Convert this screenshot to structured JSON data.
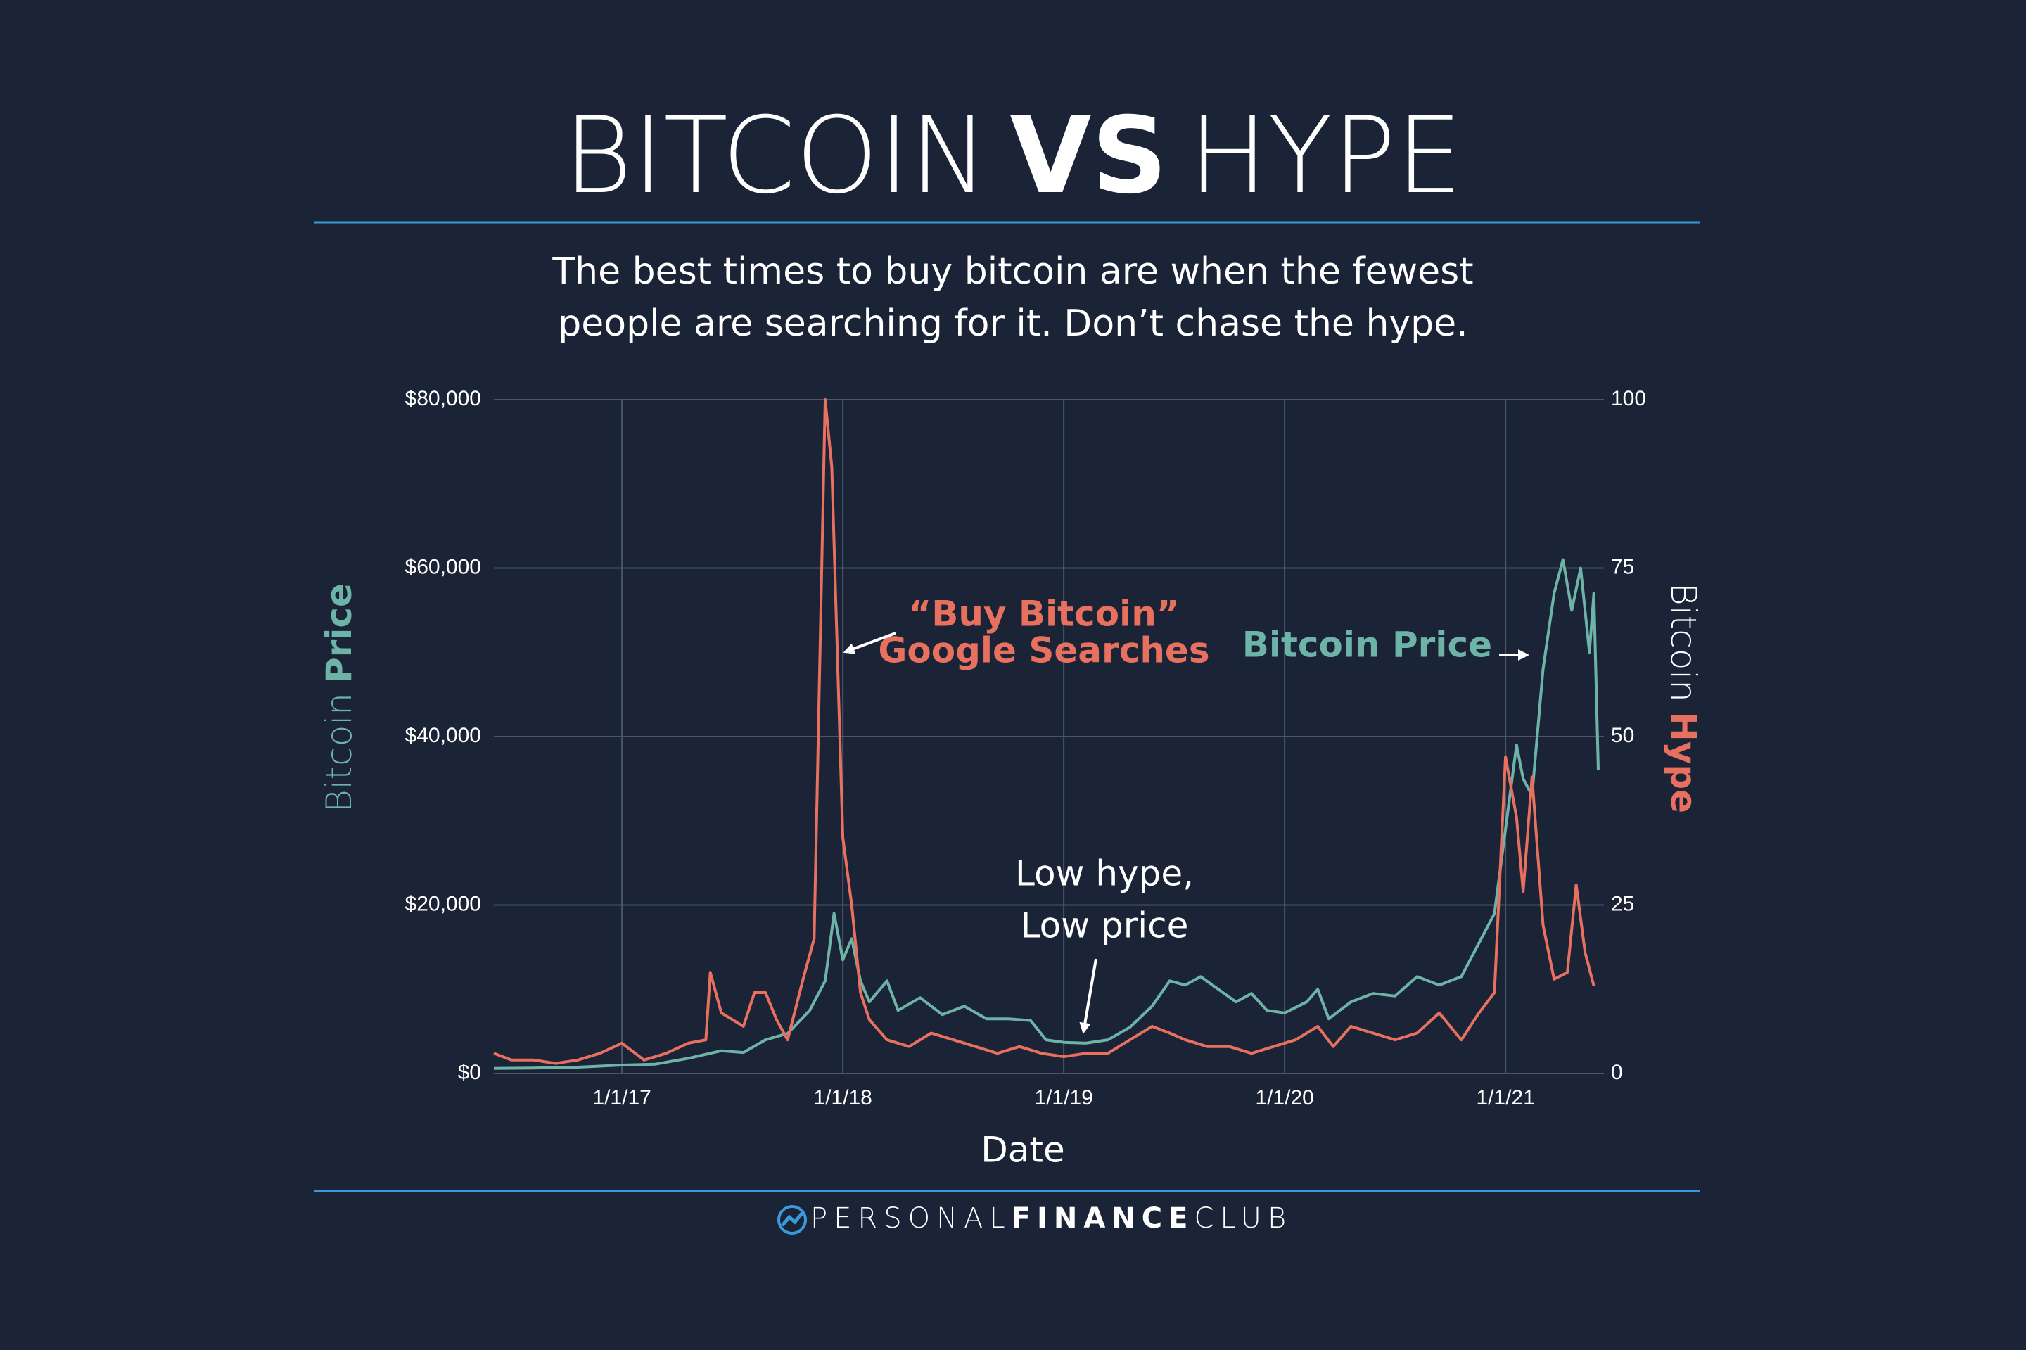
{
  "chart_data": {
    "type": "line",
    "title": [
      "BITCOIN",
      "VS",
      "HYPE"
    ],
    "subtitle": [
      "The best times to buy bitcoin are when the fewest",
      "people are searching for it. Don’t chase the hype."
    ],
    "x_label": "Date",
    "y_label": [
      "Bitcoin",
      "Price"
    ],
    "y2_label": [
      "Bitcoin",
      "Hype"
    ],
    "annotations": [
      {
        "lines": [
          "“Buy Bitcoin”",
          "Google Searches"
        ]
      },
      {
        "lines": [
          "Bitcoin Price"
        ]
      },
      {
        "lines": [
          "Low hype,",
          "Low price"
        ]
      }
    ],
    "footer": [
      "PERSONAL",
      "FINANCE",
      "CLUB"
    ],
    "grid": true,
    "xlim": [
      2016.42,
      2021.42
    ],
    "xticks": [
      {
        "value": 2017,
        "label": "1/1/17"
      },
      {
        "value": 2018,
        "label": "1/1/18"
      },
      {
        "value": 2019,
        "label": "1/1/19"
      },
      {
        "value": 2020,
        "label": "1/1/20"
      },
      {
        "value": 2021,
        "label": "1/1/21"
      }
    ],
    "ylim": [
      0,
      80000
    ],
    "yticks": [
      {
        "value": 0,
        "label": "$0"
      },
      {
        "value": 20000,
        "label": "$20,000"
      },
      {
        "value": 40000,
        "label": "$40,000"
      },
      {
        "value": 60000,
        "label": "$60,000"
      },
      {
        "value": 80000,
        "label": "$80,000"
      }
    ],
    "y2lim": [
      0,
      100
    ],
    "y2ticks": [
      0,
      25,
      50,
      75,
      100
    ],
    "series": [
      {
        "name": "Bitcoin Price",
        "color": "#6db3a7",
        "axis": "y",
        "x": [
          2016.42,
          2016.6,
          2016.8,
          2017.0,
          2017.15,
          2017.3,
          2017.45,
          2017.55,
          2017.65,
          2017.75,
          2017.85,
          2017.92,
          2017.96,
          2018.0,
          2018.04,
          2018.08,
          2018.12,
          2018.2,
          2018.25,
          2018.35,
          2018.45,
          2018.55,
          2018.65,
          2018.75,
          2018.85,
          2018.92,
          2019.0,
          2019.1,
          2019.2,
          2019.3,
          2019.4,
          2019.48,
          2019.55,
          2019.62,
          2019.7,
          2019.78,
          2019.85,
          2019.92,
          2020.0,
          2020.1,
          2020.15,
          2020.2,
          2020.3,
          2020.4,
          2020.5,
          2020.6,
          2020.7,
          2020.8,
          2020.88,
          2020.95,
          2021.0,
          2021.05,
          2021.08,
          2021.12,
          2021.17,
          2021.22,
          2021.26,
          2021.3,
          2021.34,
          2021.38,
          2021.4,
          2021.42
        ],
        "values": [
          600,
          650,
          750,
          1000,
          1100,
          1800,
          2700,
          2500,
          4000,
          4750,
          7500,
          11000,
          19000,
          13500,
          16000,
          11000,
          8500,
          11000,
          7500,
          9000,
          7000,
          8000,
          6500,
          6500,
          6300,
          4000,
          3700,
          3600,
          4000,
          5500,
          8000,
          11000,
          10500,
          11500,
          10000,
          8500,
          9500,
          7500,
          7200,
          8500,
          10000,
          6500,
          8500,
          9500,
          9200,
          11500,
          10500,
          11500,
          15500,
          19000,
          29000,
          39000,
          35000,
          33000,
          48000,
          57000,
          61000,
          55000,
          60000,
          50000,
          57000,
          36000
        ]
      },
      {
        "name": "“Buy Bitcoin” Google Searches",
        "color": "#e8705f",
        "axis": "y2",
        "x": [
          2016.42,
          2016.5,
          2016.6,
          2016.7,
          2016.8,
          2016.9,
          2017.0,
          2017.1,
          2017.2,
          2017.3,
          2017.38,
          2017.4,
          2017.45,
          2017.55,
          2017.6,
          2017.65,
          2017.7,
          2017.75,
          2017.82,
          2017.87,
          2017.92,
          2017.95,
          2018.0,
          2018.04,
          2018.08,
          2018.12,
          2018.2,
          2018.3,
          2018.4,
          2018.5,
          2018.6,
          2018.7,
          2018.8,
          2018.9,
          2019.0,
          2019.1,
          2019.2,
          2019.3,
          2019.4,
          2019.48,
          2019.55,
          2019.65,
          2019.75,
          2019.85,
          2019.95,
          2020.05,
          2020.15,
          2020.22,
          2020.3,
          2020.4,
          2020.5,
          2020.6,
          2020.7,
          2020.8,
          2020.88,
          2020.95,
          2021.0,
          2021.05,
          2021.08,
          2021.12,
          2021.17,
          2021.22,
          2021.28,
          2021.32,
          2021.36,
          2021.4
        ],
        "values": [
          3,
          2,
          2,
          1.5,
          2,
          3,
          4.5,
          2,
          3,
          4.5,
          5,
          15,
          9,
          7,
          12,
          12,
          8,
          5,
          14,
          20,
          100,
          90,
          35,
          25,
          12,
          8,
          5,
          4,
          6,
          5,
          4,
          3,
          4,
          3,
          2.5,
          3,
          3,
          5,
          7,
          6,
          5,
          4,
          4,
          3,
          4,
          5,
          7,
          4,
          7,
          6,
          5,
          6,
          9,
          5,
          9,
          12,
          47,
          38,
          27,
          44,
          22,
          14,
          15,
          28,
          18,
          13
        ]
      }
    ]
  }
}
